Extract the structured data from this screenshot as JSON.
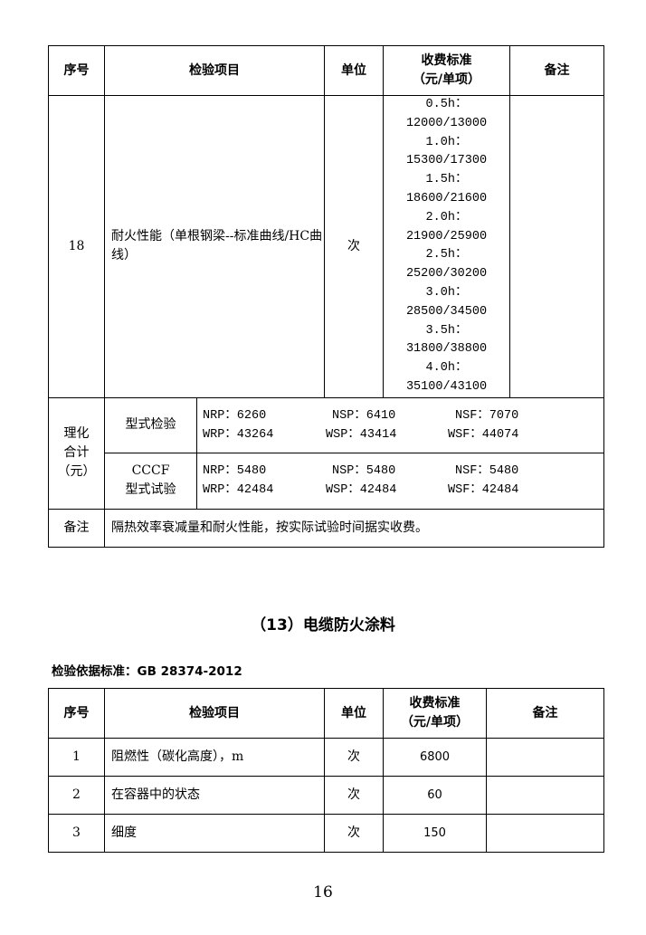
{
  "table1": {
    "headers": {
      "no": "序号",
      "item": "检验项目",
      "unit": "单位",
      "fee_line1": "收费标准",
      "fee_line2": "（元/单项）",
      "remark": "备注"
    },
    "row18": {
      "no": "18",
      "item": "耐火性能（单根钢梁--标准曲线/HC曲线）",
      "unit": "次",
      "prices": [
        {
          "duration": "0.5h：",
          "value": "12000/13000"
        },
        {
          "duration": "1.0h：",
          "value": "15300/17300"
        },
        {
          "duration": "1.5h：",
          "value": "18600/21600"
        },
        {
          "duration": "2.0h：",
          "value": "21900/25900"
        },
        {
          "duration": "2.5h：",
          "value": "25200/30200"
        },
        {
          "duration": "3.0h：",
          "value": "28500/34500"
        },
        {
          "duration": "3.5h：",
          "value": "31800/38800"
        },
        {
          "duration": "4.0h：",
          "value": "35100/43100"
        }
      ],
      "remark": ""
    },
    "totals": {
      "label_line1": "理化",
      "label_line2": "合计",
      "label_line3": "（元）",
      "rows": [
        {
          "type_line1": "型式检验",
          "type_line2": "",
          "line1": [
            "NRP：6260",
            "NSP：6410",
            "NSF：7070"
          ],
          "line2": [
            "WRP：43264",
            "WSP：43414",
            "WSF：44074"
          ]
        },
        {
          "type_line1": "CCCF",
          "type_line2": "型式试验",
          "line1": [
            "NRP：5480",
            "NSP：5480",
            "NSF：5480"
          ],
          "line2": [
            "WRP：42484",
            "WSP：42484",
            "WSF：42484"
          ]
        }
      ]
    },
    "note": {
      "label": "备注",
      "text": "隔热效率衰减量和耐火性能，按实际试验时间据实收费。"
    }
  },
  "section_title": "（13）电缆防火涂料",
  "standard": "检验依据标准：GB 28374-2012",
  "table2": {
    "headers": {
      "no": "序号",
      "item": "检验项目",
      "unit": "单位",
      "fee_line1": "收费标准",
      "fee_line2": "（元/单项）",
      "remark": "备注"
    },
    "rows": [
      {
        "no": "1",
        "item": "阻燃性（碳化高度），m",
        "unit": "次",
        "fee": "6800",
        "remark": ""
      },
      {
        "no": "2",
        "item": "在容器中的状态",
        "unit": "次",
        "fee": "60",
        "remark": ""
      },
      {
        "no": "3",
        "item": "细度",
        "unit": "次",
        "fee": "150",
        "remark": ""
      }
    ]
  },
  "page_number": "16"
}
